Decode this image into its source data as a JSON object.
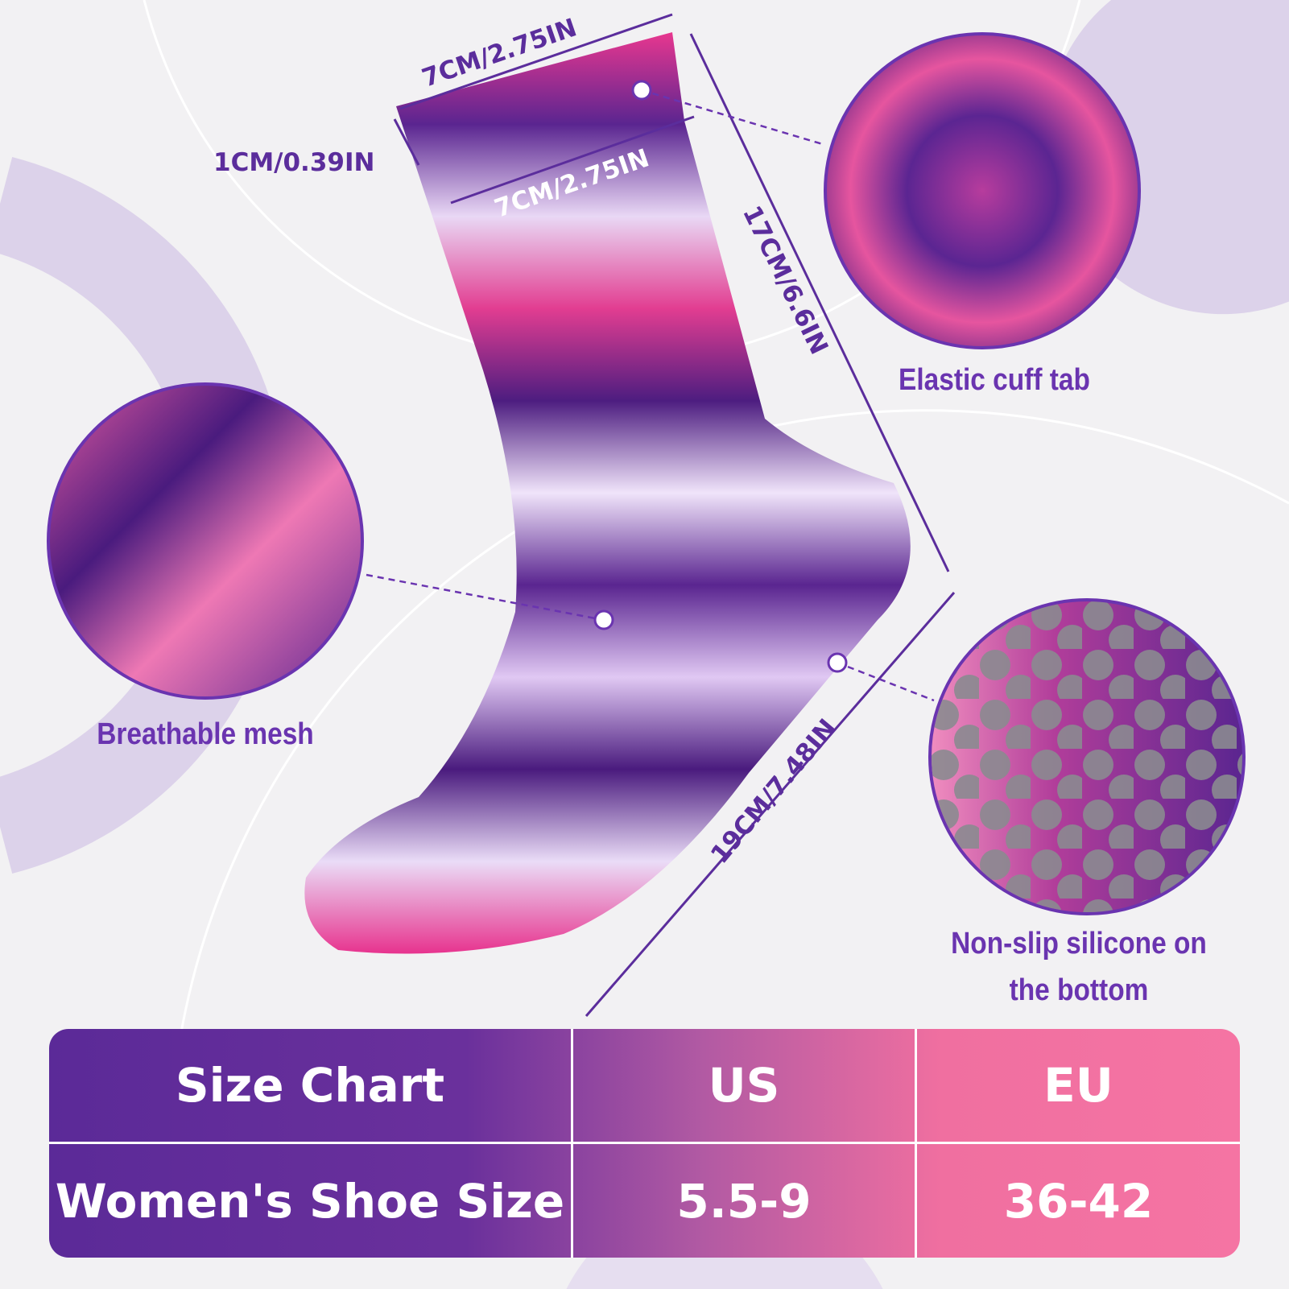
{
  "dimensions": {
    "cuff_top_width": "7CM/2.75IN",
    "cuff_height": "1CM/0.39IN",
    "leg_width": "7CM/2.75IN",
    "leg_length": "17CM/6.6IN",
    "foot_length": "19CM/7.48IN"
  },
  "features": {
    "cuff": "Elastic cuff tab",
    "mesh": "Breathable mesh",
    "silicone_line1": "Non-slip silicone on",
    "silicone_line2": "the bottom"
  },
  "size_table": {
    "headers": [
      "Size Chart",
      "US",
      "EU"
    ],
    "rows": [
      [
        "Women's Shoe Size",
        "5.5-9",
        "36-42"
      ]
    ]
  },
  "colors": {
    "purple": "#5b2a98",
    "pink": "#f574a3",
    "lavender": "#dcd2ea",
    "label": "#6a34b0"
  }
}
